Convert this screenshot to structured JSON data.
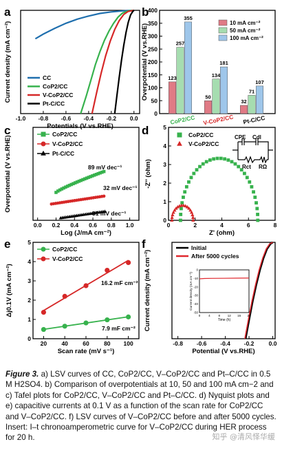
{
  "figure_label": "Figure 3.",
  "caption": "a) LSV curves of CC, CoP2/CC, V–CoP2/CC and Pt–C/CC in 0.5 M H2SO4. b) Comparison of overpotentials at 10, 50 and 100 mA cm−2 and c) Tafel plots for CoP2/CC, V–CoP2/CC and Pt–C/CC. d) Nyquist plots and e) capacitive currents at 0.1 V as a function of the scan rate for CoP2/CC and V–CoP2/CC. f) LSV curves of V–CoP2/CC before and after 5000 cycles. Insert: I–t chronoamperometric curve for V–CoP2/CC during HER process for 20 h.",
  "watermark": "知乎 @清风怿华缓",
  "chart_data": [
    {
      "panel": "a",
      "type": "line",
      "xlabel": "Potentials (V vs.RHE)",
      "ylabel": "Current density (mA cm⁻²)",
      "xlim": [
        -1.0,
        0.05
      ],
      "ylim": [
        -200,
        0
      ],
      "xticks": [
        "-1.0",
        "-0.8",
        "-0.6",
        "-0.4",
        "-0.2",
        "0.0"
      ],
      "yticks": [],
      "legend": "bottom-left",
      "series": [
        {
          "name": "CC",
          "color": "#1f6fae",
          "x": [
            -0.87,
            -0.8,
            -0.7,
            -0.6,
            -0.5,
            -0.4,
            -0.3,
            -0.2,
            -0.1,
            0.0
          ],
          "y": [
            -55,
            -46,
            -35,
            -25,
            -17,
            -11,
            -6,
            -3,
            -1,
            0
          ]
        },
        {
          "name": "CoP2/CC",
          "color": "#37b24d",
          "x": [
            -0.47,
            -0.42,
            -0.38,
            -0.34,
            -0.3,
            -0.26,
            -0.22,
            -0.18,
            -0.14,
            -0.1,
            -0.05,
            0.0
          ],
          "y": [
            -200,
            -165,
            -135,
            -105,
            -80,
            -58,
            -40,
            -25,
            -13,
            -5,
            -1,
            0
          ]
        },
        {
          "name": "V-CoP2/CC",
          "color": "#d62828",
          "x": [
            -0.37,
            -0.33,
            -0.29,
            -0.25,
            -0.21,
            -0.17,
            -0.13,
            -0.09,
            -0.05,
            0.0
          ],
          "y": [
            -200,
            -160,
            -122,
            -88,
            -60,
            -37,
            -20,
            -8,
            -2,
            0
          ]
        },
        {
          "name": "Pt-C/CC",
          "color": "#000000",
          "x": [
            -0.17,
            -0.15,
            -0.13,
            -0.11,
            -0.09,
            -0.07,
            -0.05,
            -0.03,
            -0.01,
            0.0
          ],
          "y": [
            -200,
            -165,
            -130,
            -97,
            -68,
            -43,
            -23,
            -9,
            -2,
            0
          ]
        }
      ]
    },
    {
      "panel": "b",
      "type": "bar",
      "ylabel": "Overpotential (V vs.RHE)",
      "ylim": [
        0,
        400
      ],
      "yticks": [
        "0",
        "50",
        "100",
        "150",
        "200",
        "250",
        "300",
        "350",
        "400"
      ],
      "categories": [
        "CoP2/CC",
        "V-CoP2/CC",
        "Pt-C/CC"
      ],
      "category_colors": [
        "#37b24d",
        "#d62828",
        "#000000"
      ],
      "legend": "top-right",
      "series": [
        {
          "name": "10 mA cm⁻²",
          "color": "#e07a85",
          "values": [
            123,
            50,
            32
          ]
        },
        {
          "name": "50 mA cm⁻²",
          "color": "#a6ddb0",
          "values": [
            257,
            134,
            71
          ]
        },
        {
          "name": "100 mA cm⁻²",
          "color": "#9ec6ea",
          "values": [
            355,
            181,
            107
          ]
        }
      ]
    },
    {
      "panel": "c",
      "type": "scatter",
      "xlabel": "Log (J/mA cm⁻²)",
      "ylabel": "Overpotential (V vs.RHE)",
      "xlim": [
        -0.05,
        1.1
      ],
      "ylim": [
        0.0,
        0.2
      ],
      "xticks": [
        "0.0",
        "0.2",
        "0.4",
        "0.6",
        "0.8",
        "1.0"
      ],
      "yticks": [],
      "legend": "top-left",
      "series": [
        {
          "name": "CoP2/CC",
          "color": "#37b24d",
          "marker": "square",
          "slope_label": "89 mV dec⁻¹",
          "x0": 0.2,
          "x1": 0.72,
          "y0": 0.06,
          "y1": 0.105
        },
        {
          "name": "V-CoP2/CC",
          "color": "#d62828",
          "marker": "circle",
          "slope_label": "32 mV dec⁻¹",
          "x0": 0.15,
          "x1": 0.72,
          "y0": 0.035,
          "y1": 0.052
        },
        {
          "name": "Pt-C/CC",
          "color": "#000000",
          "marker": "triangle",
          "slope_label": "31 mV dec⁻¹",
          "x0": 0.25,
          "x1": 0.73,
          "y0": 0.005,
          "y1": 0.019
        }
      ]
    },
    {
      "panel": "d",
      "type": "scatter",
      "xlabel": "Z' (ohm)",
      "ylabel": "-Z'' (ohm)",
      "xlim": [
        0,
        8
      ],
      "ylim": [
        0,
        5
      ],
      "xticks": [
        "0",
        "2",
        "4",
        "6",
        "8"
      ],
      "yticks": [
        "0",
        "1",
        "2",
        "3",
        "4",
        "5"
      ],
      "legend": "top-left",
      "inset": {
        "labels": [
          "CPE",
          "Cdl",
          "Rct",
          "RΩ"
        ]
      },
      "series": [
        {
          "name": "CoP2/CC",
          "color": "#37b24d",
          "marker": "square",
          "center_x": 3.8,
          "radius": 2.9
        },
        {
          "name": "V-CoP2/CC",
          "color": "#d62828",
          "marker": "triangle",
          "center_x": 1.05,
          "radius": 0.8
        }
      ]
    },
    {
      "panel": "e",
      "type": "scatter",
      "xlabel": "Scan rate (mV s⁻¹)",
      "ylabel": "Δj0.1V (mA cm⁻²)",
      "xlim": [
        10,
        110
      ],
      "ylim": [
        0,
        5
      ],
      "xticks": [
        "20",
        "40",
        "60",
        "80",
        "100"
      ],
      "yticks": [
        "0",
        "1",
        "2",
        "3",
        "4",
        "5"
      ],
      "legend": "top-left",
      "series": [
        {
          "name": "CoP2/CC",
          "color": "#37b24d",
          "marker": "circle",
          "slope_label": "7.9 mF cm⁻²",
          "x": [
            20,
            40,
            60,
            80,
            100
          ],
          "y": [
            0.48,
            0.65,
            0.82,
            0.98,
            1.13
          ]
        },
        {
          "name": "V-CoP2/CC",
          "color": "#d62828",
          "marker": "circle",
          "slope_label": "16.2 mF cm⁻²",
          "x": [
            20,
            40,
            60,
            80,
            100
          ],
          "y": [
            1.37,
            2.2,
            2.75,
            3.55,
            3.95
          ]
        }
      ]
    },
    {
      "panel": "f",
      "type": "line",
      "xlabel": "Potential (V vs.RHE)",
      "ylabel": "Current density (mA cm⁻²)",
      "xlim": [
        -0.85,
        0.02
      ],
      "ylim": [
        -200,
        0
      ],
      "xticks": [
        "-0.8",
        "-0.6",
        "-0.4",
        "-0.2",
        "0.0"
      ],
      "yticks": [
        "-200",
        "-150",
        "-100",
        "-50",
        "0"
      ],
      "legend": "top-left",
      "series": [
        {
          "name": "Initial",
          "color": "#000000",
          "x": [
            -0.23,
            -0.2,
            -0.17,
            -0.14,
            -0.11,
            -0.08,
            -0.05,
            -0.02,
            0.0
          ],
          "y": [
            -200,
            -160,
            -122,
            -88,
            -58,
            -33,
            -14,
            -3,
            0
          ]
        },
        {
          "name": "After 5000 cycles",
          "color": "#e0282e",
          "x": [
            -0.235,
            -0.205,
            -0.175,
            -0.145,
            -0.115,
            -0.085,
            -0.055,
            -0.025,
            0.0
          ],
          "y": [
            -200,
            -160,
            -122,
            -88,
            -58,
            -33,
            -14,
            -3,
            0
          ]
        }
      ],
      "inset": {
        "xlabel": "Time (h)",
        "ylabel": "Current density (mA cm⁻²)",
        "xlim": [
          0,
          20
        ],
        "ylim": [
          -50,
          0
        ],
        "xticks": [
          "0",
          "4",
          "8",
          "12",
          "16",
          "20"
        ],
        "yticks": [
          "0",
          "-10",
          "-20",
          "-30",
          "-40",
          "-50"
        ],
        "series": [
          {
            "name": "I-t",
            "color": "#e0282e",
            "x": [
              0,
              2,
              5,
              10,
              15,
              20
            ],
            "y": [
              -10.5,
              -10.1,
              -9.9,
              -9.8,
              -9.7,
              -9.6
            ]
          }
        ]
      }
    }
  ]
}
